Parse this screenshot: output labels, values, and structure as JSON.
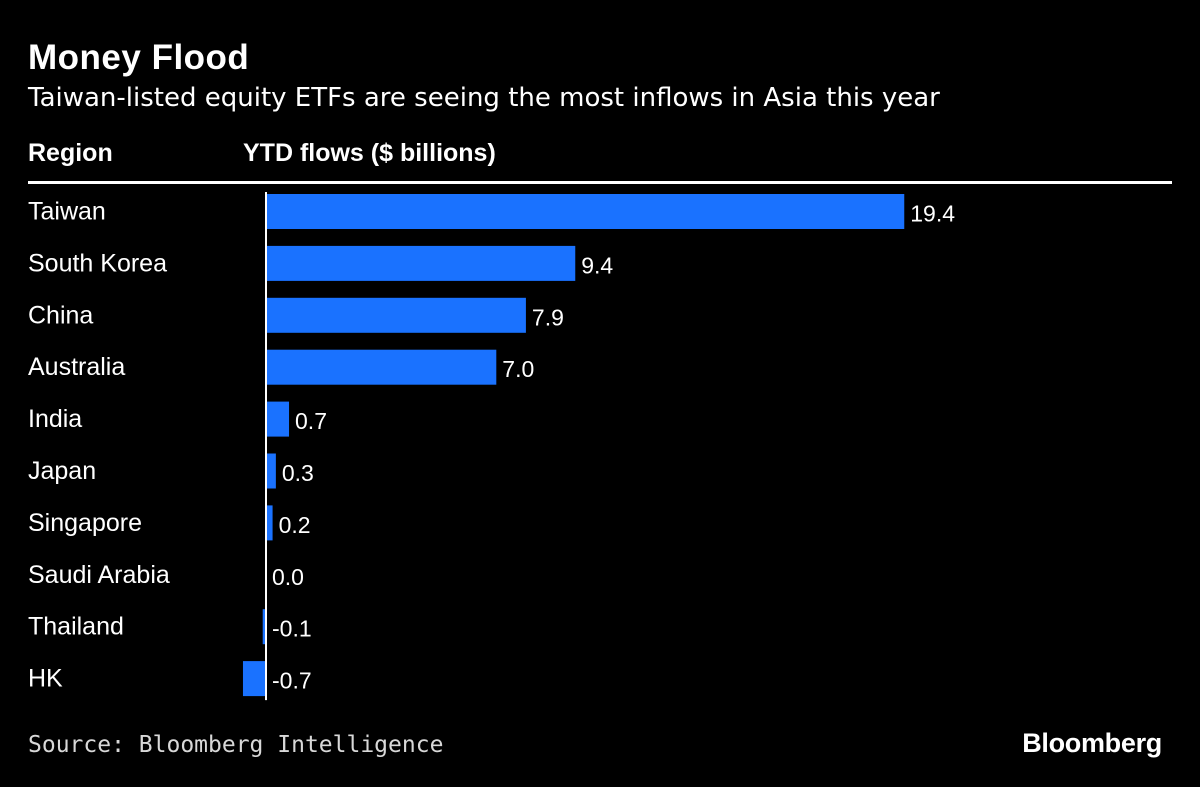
{
  "header": {
    "title": "Money Flood",
    "subtitle": "Taiwan-listed equity ETFs are seeing the most inflows in Asia this year",
    "column_region": "Region",
    "column_value": "YTD flows ($ billions)"
  },
  "footer": {
    "source": "Source: Bloomberg Intelligence",
    "brand": "Bloomberg"
  },
  "colors": {
    "background": "#000000",
    "bar": "#1a72ff",
    "text": "#ffffff",
    "baseline": "#ffffff"
  },
  "chart_data": {
    "type": "bar",
    "orientation": "horizontal",
    "categories": [
      "Taiwan",
      "South Korea",
      "China",
      "Australia",
      "India",
      "Japan",
      "Singapore",
      "Saudi Arabia",
      "Thailand",
      "HK"
    ],
    "values": [
      19.4,
      9.4,
      7.9,
      7.0,
      0.7,
      0.3,
      0.2,
      0.0,
      -0.1,
      -0.7
    ],
    "value_labels": [
      "19.4",
      "9.4",
      "7.9",
      "7.0",
      "0.7",
      "0.3",
      "0.2",
      "0.0",
      "-0.1",
      "-0.7"
    ],
    "title": "Money Flood",
    "subtitle": "Taiwan-listed equity ETFs are seeing the most inflows in Asia this year",
    "xlabel": "YTD flows ($ billions)",
    "ylabel": "Region",
    "grid": false,
    "legend": "none"
  }
}
